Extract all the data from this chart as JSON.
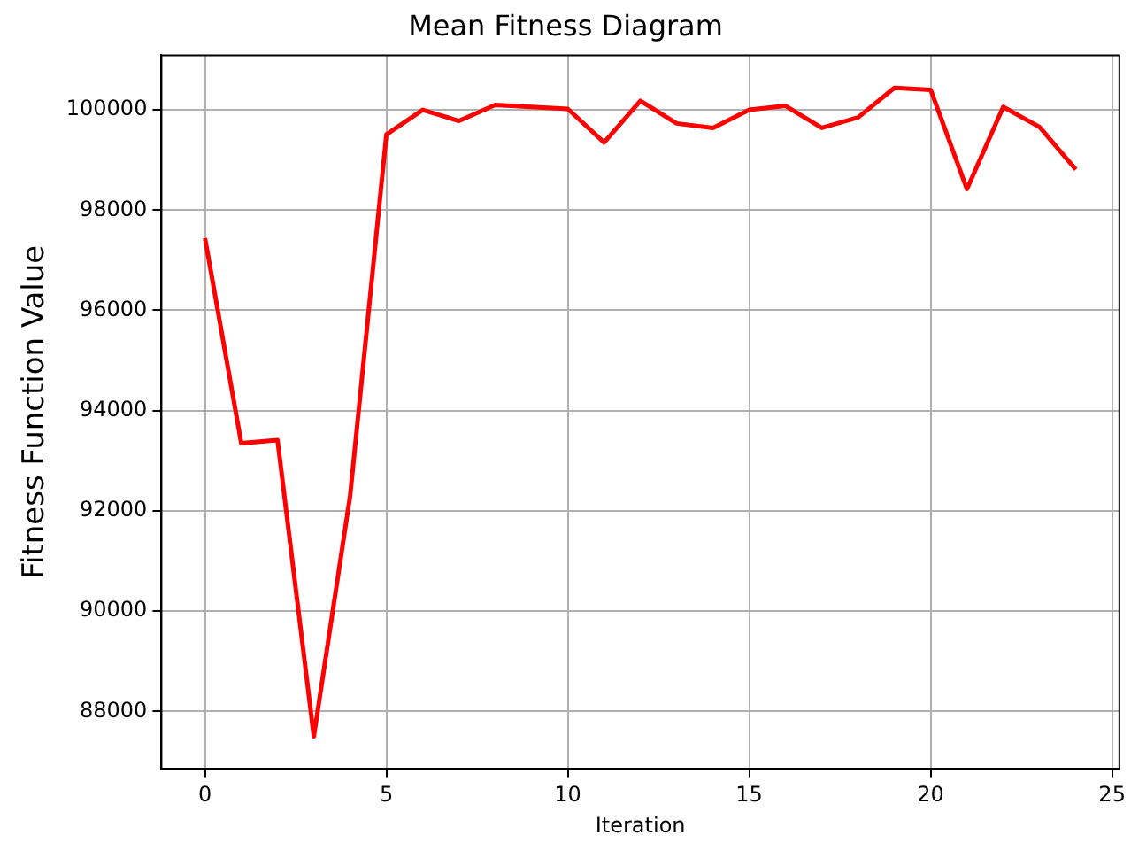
{
  "chart_data": {
    "type": "line",
    "title": "Mean Fitness Diagram",
    "xlabel": "Iteration",
    "ylabel": "Fitness Function Value",
    "x": [
      0,
      1,
      2,
      3,
      4,
      5,
      6,
      7,
      8,
      9,
      10,
      11,
      12,
      13,
      14,
      15,
      16,
      17,
      18,
      19,
      20,
      21,
      22,
      23,
      24
    ],
    "series": [
      {
        "color": "#ff0000",
        "values": [
          97440,
          93350,
          93410,
          87500,
          92300,
          99510,
          100000,
          99780,
          100100,
          100060,
          100020,
          99350,
          100180,
          99730,
          99640,
          100000,
          100080,
          99640,
          99850,
          100440,
          100400,
          98420,
          100060,
          99660,
          98810
        ]
      }
    ],
    "xlim": [
      -1.2,
      25.2
    ],
    "xticks": [
      0,
      5,
      10,
      15,
      20,
      25
    ],
    "ylim": [
      86850,
      101090
    ],
    "yticks": [
      88000,
      90000,
      92000,
      94000,
      96000,
      98000,
      100000
    ],
    "grid": true,
    "legend": false,
    "marker": "none",
    "line_style": "solid"
  }
}
